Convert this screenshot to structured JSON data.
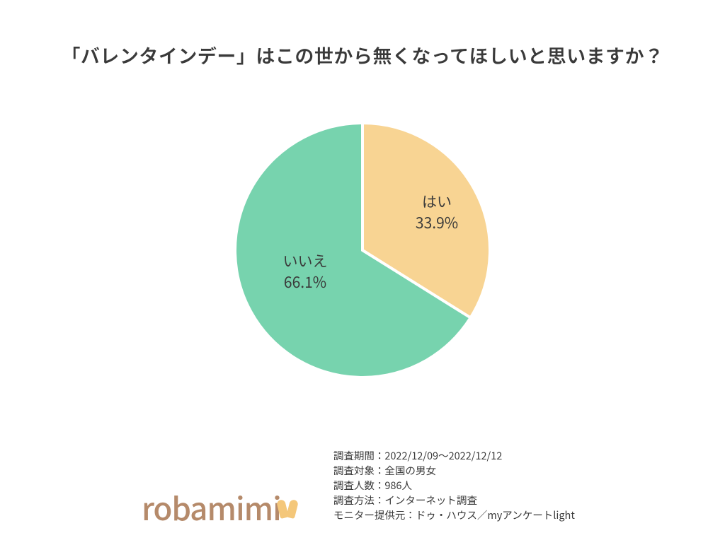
{
  "chart": {
    "type": "pie",
    "title": "「バレンタインデー」はこの世から無くなってほしいと思いますか？",
    "background_color": "#ffffff",
    "title_color": "#3a3a3a",
    "title_fontsize": 27,
    "label_fontsize": 21,
    "label_color": "#3a3a3a",
    "radius": 180,
    "slice_gap_color": "#ffffff",
    "slice_gap_width": 4,
    "slices": [
      {
        "key": "yes",
        "label": "はい",
        "value": 33.9,
        "pct_text": "33.9%",
        "color": "#f8d493"
      },
      {
        "key": "no",
        "label": "いいえ",
        "value": 66.1,
        "pct_text": "66.1%",
        "color": "#77d3ae"
      }
    ]
  },
  "logo": {
    "text": "robamimi",
    "text_color": "#b58a6a",
    "accent_color": "#f4c77a"
  },
  "meta": {
    "lines": [
      "調査期間：2022/12/09〜2022/12/12",
      "調査対象：全国の男女",
      "調査人数：986人",
      "調査方法：インターネット調査",
      "モニター提供元：ドゥ・ハウス／myアンケートlight"
    ]
  }
}
